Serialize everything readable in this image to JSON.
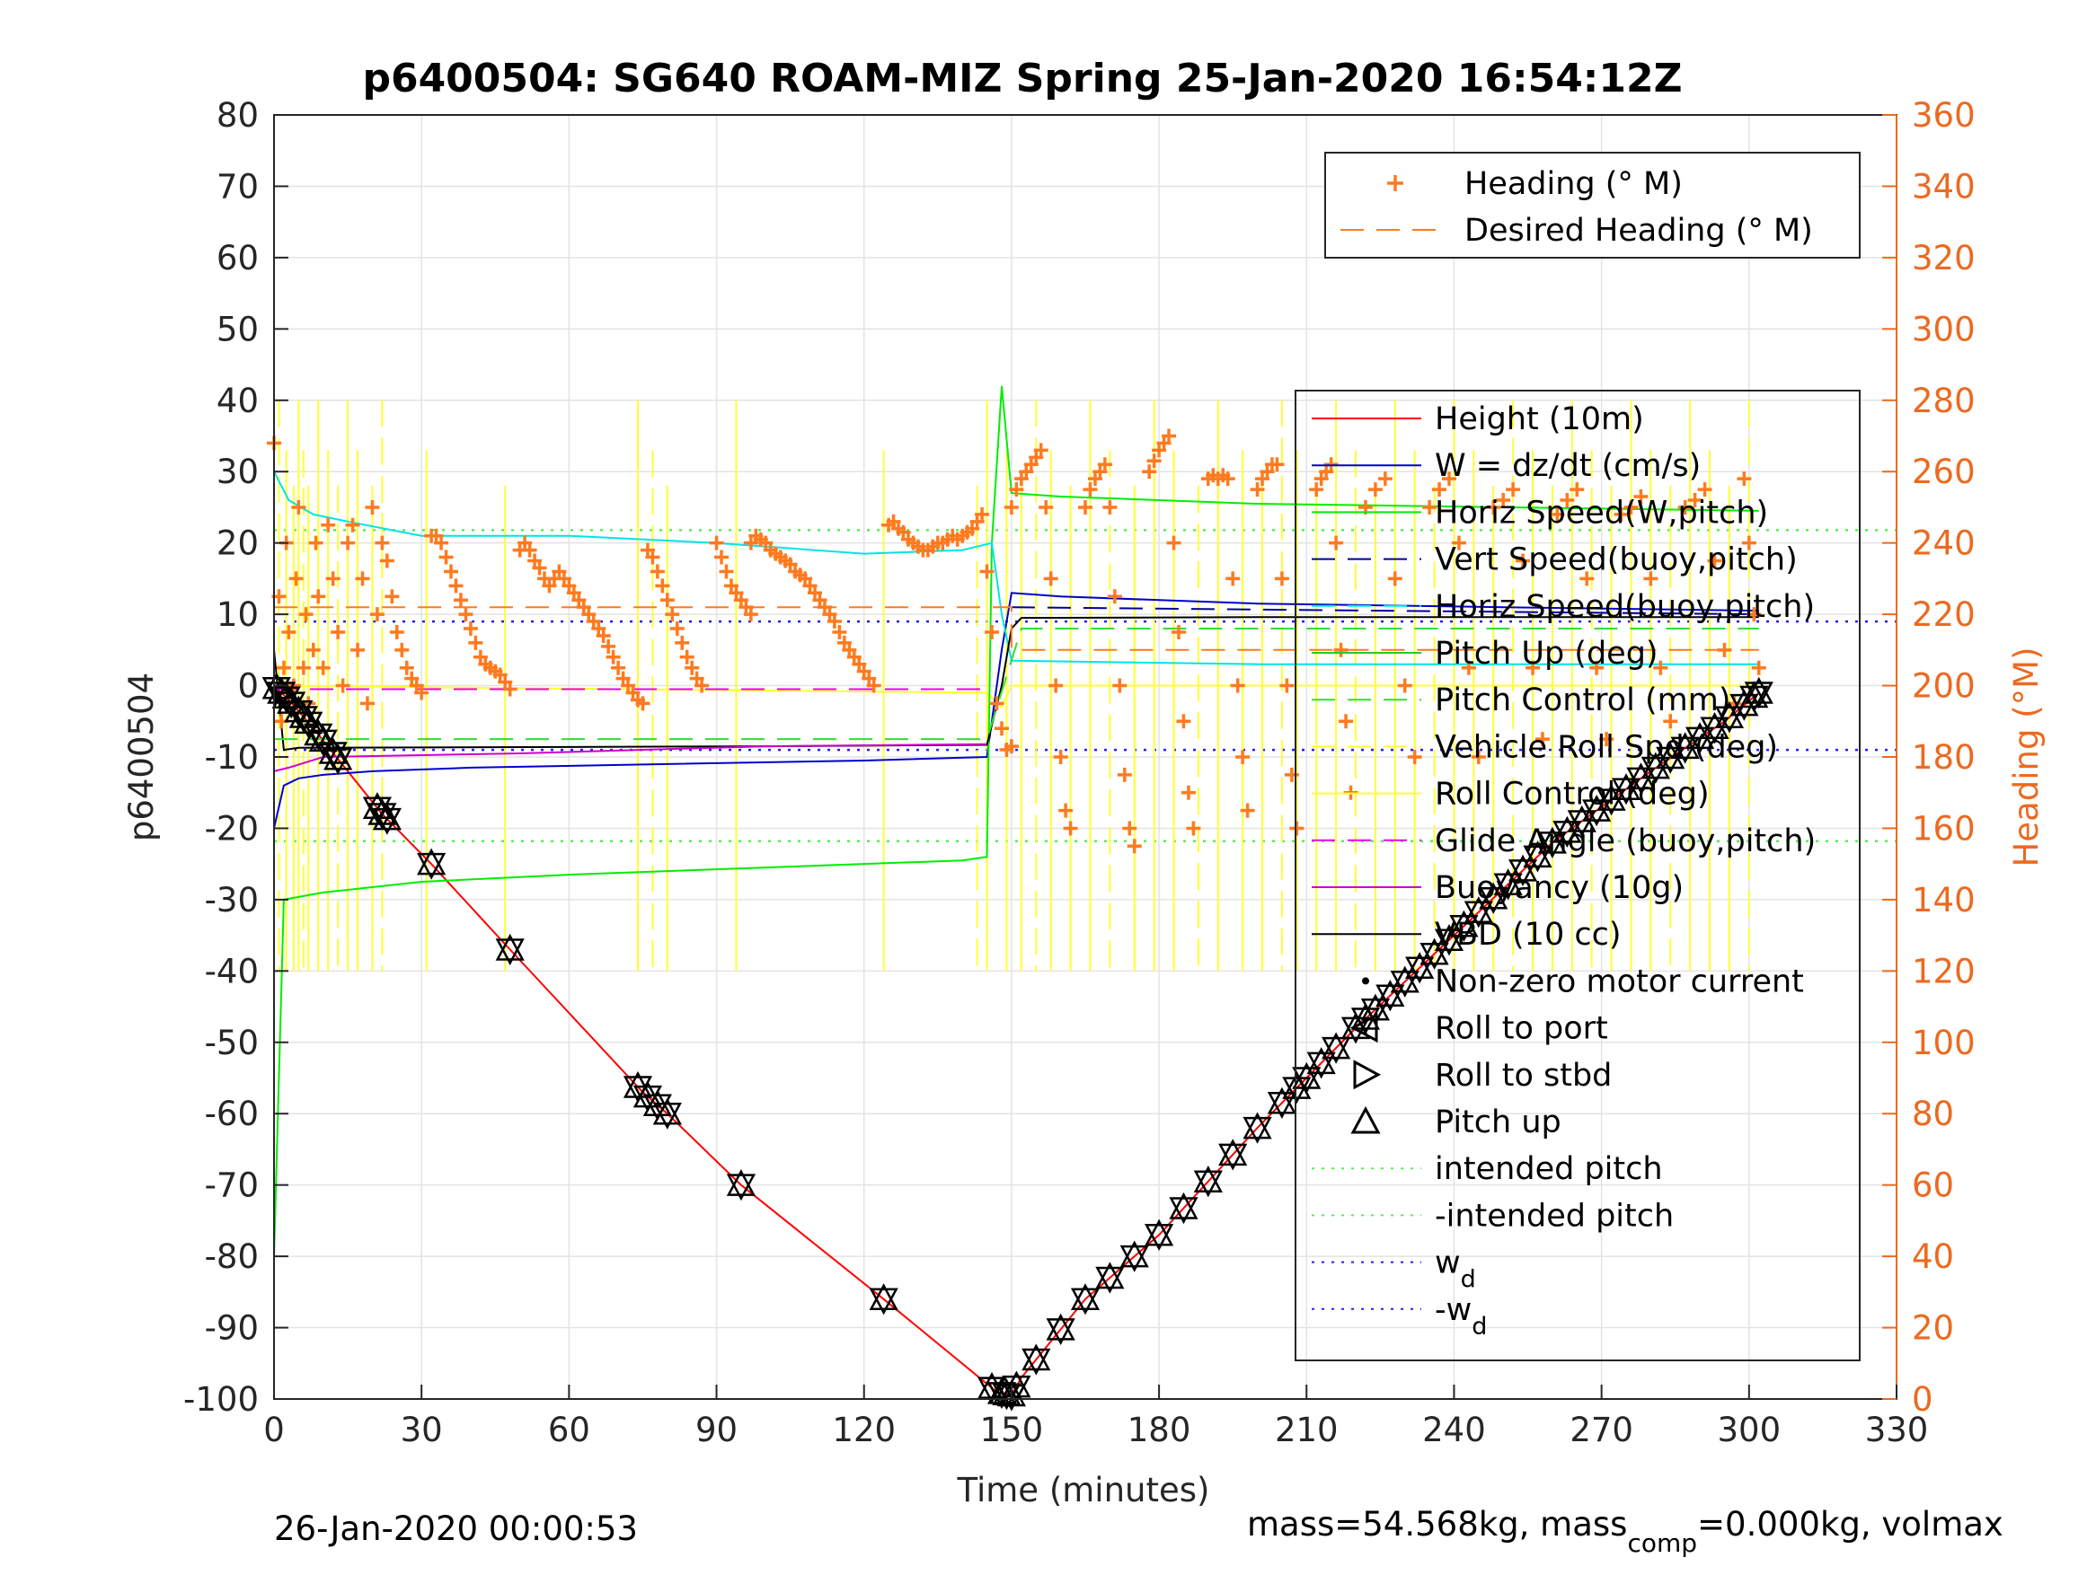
{
  "title": "p6400504: SG640 ROAM-MIZ Spring 25-Jan-2020 16:54:12Z",
  "footer_left": "26-Jan-2020 00:00:53",
  "footer_right": {
    "text_1": "mass=54.568kg, mass",
    "sub_1": "comp",
    "text_2": "=0.000kg, volmax"
  },
  "colors": {
    "height": "#ff0000",
    "w": "#0000cc",
    "horiz_speed": "#00ee00",
    "vert_speed": "#000099",
    "horiz_speed_buoy": "#00e5e5",
    "pitch_up": "#22cc22",
    "pitch_control": "#33dd33",
    "roll": "#ffff33",
    "glide_angle": "#ee00ee",
    "buoyancy": "#cc00cc",
    "vbd": "#000000",
    "heading": "#ff7a1f",
    "desired_heading": "#ff7a1f",
    "intended_pitch": "#55ee55",
    "wd": "#2222ee",
    "right_axis": "#ec6a20"
  },
  "chart_data": {
    "type": "line",
    "title": "p6400504: SG640 ROAM-MIZ Spring 25-Jan-2020 16:54:12Z",
    "xlabel": "Time (minutes)",
    "ylabel": "p6400504",
    "ylabel_right": "Heading (°M)",
    "xlim": [
      0,
      330
    ],
    "ylim": [
      -100,
      80
    ],
    "ylim_right": [
      0,
      360
    ],
    "xticks": [
      0,
      30,
      60,
      90,
      120,
      150,
      180,
      210,
      240,
      270,
      300,
      330
    ],
    "yticks": [
      -100,
      -90,
      -80,
      -70,
      -60,
      -50,
      -40,
      -30,
      -20,
      -10,
      0,
      10,
      20,
      30,
      40,
      50,
      60,
      70,
      80
    ],
    "yticks_right": [
      0,
      20,
      40,
      60,
      80,
      100,
      120,
      140,
      160,
      180,
      200,
      220,
      240,
      260,
      280,
      300,
      320,
      340,
      360
    ],
    "grid": true,
    "legend_top": {
      "placement": "top-right",
      "entries": [
        "Heading (° M)",
        "Desired Heading (° M)"
      ]
    },
    "legend_main": {
      "placement": "right",
      "entries": [
        "Height (10m)",
        "W = dz/dt (cm/s)",
        "Horiz Speed(W,pitch)",
        "Vert Speed(buoy,pitch)",
        "Horiz Speed(buoy,pitch)",
        "Pitch Up (deg)",
        "Pitch Control (mm)",
        "Vehicle Roll Spd (deg)",
        "Roll Control (deg)",
        "Glide Angle (buoy,pitch)",
        "Buoyancy (10g)",
        "VBD (10 cc)",
        "Non-zero motor current",
        "Roll to port",
        "Roll to stbd",
        "Pitch up",
        "intended pitch",
        "-intended pitch",
        "w_d",
        "-w_d"
      ],
      "wd_label": "w",
      "wd_sub": "d",
      "neg_wd_label": "-w",
      "neg_wd_sub": "d"
    },
    "series": [
      {
        "key": "height",
        "x": [
          0,
          3,
          8,
          15,
          22,
          32,
          48,
          75,
          80,
          95,
          124,
          147,
          150,
          152,
          165,
          180,
          200,
          220,
          240,
          260,
          280,
          295,
          302
        ],
        "y": [
          0,
          -2,
          -6,
          -12,
          -18,
          -25,
          -37,
          -57,
          -60,
          -70,
          -86,
          -99,
          -99.5,
          -97,
          -86,
          -77,
          -62,
          -48,
          -35,
          -22,
          -12,
          -5,
          -1
        ]
      },
      {
        "key": "w",
        "x": [
          0,
          2,
          5,
          10,
          20,
          40,
          80,
          120,
          145,
          148,
          150,
          160,
          200,
          250,
          302
        ],
        "y": [
          -20,
          -14,
          -13,
          -12.5,
          -12,
          -11.5,
          -11,
          -10.5,
          -10,
          5,
          13,
          12.5,
          11.5,
          11,
          10.5
        ]
      },
      {
        "key": "horiz_speed",
        "x": [
          0,
          2,
          10,
          30,
          60,
          100,
          140,
          145,
          146,
          148,
          150,
          160,
          200,
          250,
          302
        ],
        "y": [
          -80,
          -30,
          -29,
          -27.5,
          -26.5,
          -25.5,
          -24.5,
          -24,
          20,
          42,
          27,
          26.5,
          25.5,
          25,
          24.5
        ]
      },
      {
        "key": "horiz_speed_buoy",
        "x": [
          0,
          3,
          8,
          15,
          30,
          60,
          90,
          120,
          140,
          146,
          148,
          150,
          200,
          302
        ],
        "y": [
          30,
          26,
          24,
          23,
          21,
          21,
          20,
          18.5,
          19,
          20,
          10,
          3.5,
          3,
          3
        ]
      },
      {
        "key": "vbd",
        "x": [
          0,
          2,
          5,
          60,
          100,
          145,
          148,
          150,
          152,
          200,
          302
        ],
        "y": [
          5,
          -9,
          -8.7,
          -8.6,
          -8.5,
          -8.3,
          0,
          8,
          9.5,
          9.6,
          9.6
        ]
      },
      {
        "key": "buoyancy",
        "x": [
          0,
          3,
          10,
          50,
          100,
          145
        ],
        "y": [
          -12,
          -11.5,
          -10,
          -9.5,
          -8.5,
          -8.2
        ]
      },
      {
        "key": "glide_angle",
        "x": [
          0,
          145
        ],
        "y": [
          -0.5,
          -0.5
        ]
      },
      {
        "key": "vert_speed",
        "x": [
          150,
          302
        ],
        "y": [
          11,
          10
        ]
      },
      {
        "key": "pitch_control",
        "x": [
          0,
          145,
          152,
          302
        ],
        "y": [
          -7.5,
          -7.5,
          8,
          8
        ]
      },
      {
        "key": "intended_pitch",
        "style": "dotted",
        "x": [
          0,
          330
        ],
        "y": [
          21.8,
          21.8
        ]
      },
      {
        "key": "neg_intended_pitch",
        "style": "dotted",
        "x": [
          0,
          330
        ],
        "y": [
          -21.8,
          -21.8
        ]
      },
      {
        "key": "wd",
        "style": "dotted",
        "x": [
          0,
          330
        ],
        "y": [
          9,
          9
        ]
      },
      {
        "key": "neg_wd",
        "style": "dotted",
        "x": [
          0,
          330
        ],
        "y": [
          -9,
          -9
        ]
      },
      {
        "key": "desired_heading",
        "style": "dashed",
        "axis": "right",
        "x": [
          0,
          150,
          150,
          302
        ],
        "y": [
          222,
          222,
          210,
          210
        ]
      }
    ],
    "roll_spikes_x": [
      1,
      2.5,
      4,
      5,
      6,
      7,
      9,
      11,
      13,
      15,
      17,
      20,
      22,
      31,
      47,
      74,
      77,
      80,
      94,
      124,
      143,
      145,
      149,
      152,
      155,
      158,
      162,
      166,
      170,
      175,
      179,
      183,
      188,
      192,
      197,
      201,
      205,
      208,
      212,
      216,
      220,
      224,
      228,
      232,
      236,
      240,
      244,
      248,
      252,
      256,
      260,
      264,
      268,
      272,
      276,
      280,
      284,
      288,
      292,
      296,
      300
    ],
    "heading_points": [
      [
        0,
        268
      ],
      [
        1,
        225
      ],
      [
        1.5,
        190
      ],
      [
        2,
        205
      ],
      [
        2.5,
        240
      ],
      [
        3,
        215
      ],
      [
        4,
        200
      ],
      [
        4.5,
        230
      ],
      [
        5,
        250
      ],
      [
        6,
        205
      ],
      [
        6.5,
        220
      ],
      [
        7,
        195
      ],
      [
        8,
        210
      ],
      [
        8.5,
        240
      ],
      [
        9,
        225
      ],
      [
        10,
        205
      ],
      [
        11,
        245
      ],
      [
        12,
        230
      ],
      [
        13,
        215
      ],
      [
        14,
        200
      ],
      [
        15,
        240
      ],
      [
        16,
        245
      ],
      [
        17,
        210
      ],
      [
        18,
        230
      ],
      [
        19,
        195
      ],
      [
        20,
        250
      ],
      [
        21,
        220
      ],
      [
        22,
        240
      ],
      [
        23,
        235
      ],
      [
        24,
        225
      ],
      [
        25,
        215
      ],
      [
        26,
        210
      ],
      [
        27,
        205
      ],
      [
        28,
        202
      ],
      [
        29,
        200
      ],
      [
        30,
        198
      ],
      [
        32,
        242
      ],
      [
        33,
        242
      ],
      [
        34,
        240
      ],
      [
        35,
        236
      ],
      [
        36,
        232
      ],
      [
        37,
        228
      ],
      [
        38,
        224
      ],
      [
        39,
        220
      ],
      [
        40,
        216
      ],
      [
        41,
        212
      ],
      [
        42,
        208
      ],
      [
        43,
        206
      ],
      [
        44,
        205
      ],
      [
        45,
        204
      ],
      [
        46,
        203
      ],
      [
        47,
        201
      ],
      [
        48,
        199
      ],
      [
        50,
        238
      ],
      [
        51,
        240
      ],
      [
        52,
        238
      ],
      [
        53,
        235
      ],
      [
        54,
        233
      ],
      [
        55,
        230
      ],
      [
        56,
        228
      ],
      [
        57,
        230
      ],
      [
        58,
        232
      ],
      [
        59,
        230
      ],
      [
        60,
        228
      ],
      [
        61,
        226
      ],
      [
        62,
        224
      ],
      [
        63,
        222
      ],
      [
        64,
        220
      ],
      [
        65,
        218
      ],
      [
        66,
        216
      ],
      [
        67,
        214
      ],
      [
        68,
        211
      ],
      [
        69,
        208
      ],
      [
        70,
        205
      ],
      [
        71,
        202
      ],
      [
        72,
        200
      ],
      [
        73,
        198
      ],
      [
        74,
        196
      ],
      [
        75,
        195
      ],
      [
        76,
        238
      ],
      [
        77,
        236
      ],
      [
        78,
        232
      ],
      [
        79,
        228
      ],
      [
        80,
        224
      ],
      [
        81,
        220
      ],
      [
        82,
        216
      ],
      [
        83,
        212
      ],
      [
        84,
        208
      ],
      [
        85,
        205
      ],
      [
        86,
        202
      ],
      [
        87,
        200
      ],
      [
        90,
        240
      ],
      [
        91,
        236
      ],
      [
        92,
        232
      ],
      [
        93,
        228
      ],
      [
        94,
        226
      ],
      [
        95,
        224
      ],
      [
        96,
        222
      ],
      [
        97,
        220
      ],
      [
        97,
        240
      ],
      [
        98,
        242
      ],
      [
        99,
        241
      ],
      [
        100,
        240
      ],
      [
        101,
        238
      ],
      [
        102,
        237
      ],
      [
        103,
        236
      ],
      [
        104,
        235
      ],
      [
        105,
        234
      ],
      [
        106,
        232
      ],
      [
        107,
        231
      ],
      [
        108,
        230
      ],
      [
        109,
        228
      ],
      [
        110,
        226
      ],
      [
        111,
        224
      ],
      [
        112,
        222
      ],
      [
        113,
        220
      ],
      [
        114,
        218
      ],
      [
        115,
        215
      ],
      [
        116,
        212
      ],
      [
        117,
        210
      ],
      [
        118,
        208
      ],
      [
        119,
        206
      ],
      [
        120,
        204
      ],
      [
        121,
        202
      ],
      [
        122,
        200
      ],
      [
        125,
        245
      ],
      [
        126,
        246
      ],
      [
        127,
        244
      ],
      [
        128,
        243
      ],
      [
        129,
        241
      ],
      [
        130,
        240
      ],
      [
        131,
        239
      ],
      [
        132,
        238
      ],
      [
        133,
        238
      ],
      [
        134,
        239
      ],
      [
        135,
        240
      ],
      [
        136,
        240
      ],
      [
        137,
        241
      ],
      [
        138,
        242
      ],
      [
        139,
        241
      ],
      [
        140,
        242
      ],
      [
        141,
        243
      ],
      [
        142,
        244
      ],
      [
        143,
        246
      ],
      [
        144,
        248
      ],
      [
        145,
        232
      ],
      [
        146,
        215
      ],
      [
        147,
        195
      ],
      [
        148,
        188
      ],
      [
        149,
        182
      ],
      [
        150,
        183
      ],
      [
        150,
        250
      ],
      [
        151,
        255
      ],
      [
        152,
        258
      ],
      [
        153,
        260
      ],
      [
        154,
        262
      ],
      [
        155,
        264
      ],
      [
        156,
        266
      ],
      [
        157,
        250
      ],
      [
        158,
        230
      ],
      [
        159,
        200
      ],
      [
        160,
        180
      ],
      [
        161,
        165
      ],
      [
        162,
        160
      ],
      [
        165,
        250
      ],
      [
        166,
        255
      ],
      [
        167,
        258
      ],
      [
        168,
        260
      ],
      [
        169,
        262
      ],
      [
        170,
        250
      ],
      [
        171,
        225
      ],
      [
        172,
        200
      ],
      [
        173,
        175
      ],
      [
        174,
        160
      ],
      [
        175,
        155
      ],
      [
        178,
        260
      ],
      [
        179,
        263
      ],
      [
        180,
        266
      ],
      [
        181,
        268
      ],
      [
        182,
        270
      ],
      [
        183,
        240
      ],
      [
        184,
        215
      ],
      [
        185,
        190
      ],
      [
        186,
        170
      ],
      [
        187,
        160
      ],
      [
        190,
        258
      ],
      [
        191,
        259
      ],
      [
        192,
        258
      ],
      [
        193,
        259
      ],
      [
        194,
        258
      ],
      [
        195,
        230
      ],
      [
        196,
        200
      ],
      [
        197,
        180
      ],
      [
        198,
        165
      ],
      [
        200,
        255
      ],
      [
        201,
        258
      ],
      [
        202,
        260
      ],
      [
        203,
        262
      ],
      [
        204,
        262
      ],
      [
        205,
        230
      ],
      [
        206,
        200
      ],
      [
        207,
        175
      ],
      [
        208,
        160
      ],
      [
        212,
        255
      ],
      [
        213,
        258
      ],
      [
        214,
        260
      ],
      [
        215,
        262
      ],
      [
        216,
        240
      ],
      [
        217,
        210
      ],
      [
        218,
        190
      ],
      [
        219,
        170
      ],
      [
        222,
        250
      ],
      [
        224,
        255
      ],
      [
        226,
        258
      ],
      [
        228,
        230
      ],
      [
        230,
        200
      ],
      [
        232,
        180
      ],
      [
        235,
        250
      ],
      [
        237,
        255
      ],
      [
        239,
        258
      ],
      [
        241,
        240
      ],
      [
        243,
        205
      ],
      [
        245,
        180
      ],
      [
        248,
        250
      ],
      [
        250,
        252
      ],
      [
        252,
        255
      ],
      [
        254,
        235
      ],
      [
        256,
        205
      ],
      [
        258,
        185
      ],
      [
        261,
        248
      ],
      [
        263,
        252
      ],
      [
        265,
        255
      ],
      [
        267,
        230
      ],
      [
        269,
        205
      ],
      [
        271,
        185
      ],
      [
        274,
        248
      ],
      [
        276,
        250
      ],
      [
        278,
        253
      ],
      [
        280,
        230
      ],
      [
        282,
        205
      ],
      [
        284,
        190
      ],
      [
        287,
        250
      ],
      [
        289,
        252
      ],
      [
        291,
        255
      ],
      [
        293,
        235
      ],
      [
        295,
        210
      ],
      [
        297,
        195
      ],
      [
        299,
        258
      ],
      [
        300,
        240
      ],
      [
        301,
        220
      ],
      [
        302,
        205
      ]
    ],
    "pitch_up_markers_x": [
      0.5,
      1.5,
      2.5,
      3.5,
      5,
      6,
      7,
      9,
      10,
      12,
      13,
      21,
      22,
      23,
      32,
      48,
      74,
      76,
      78,
      80,
      95,
      124,
      146,
      148,
      149,
      150,
      151,
      155,
      160,
      165,
      170,
      175,
      180,
      185,
      190,
      195,
      200,
      205,
      208,
      210,
      213,
      216,
      220,
      222,
      224,
      227,
      230,
      233,
      236,
      239,
      242,
      245,
      248,
      251,
      254,
      257,
      260,
      263,
      266,
      269,
      272,
      275,
      278,
      281,
      284,
      287,
      290,
      293,
      296,
      299,
      301,
      302
    ]
  }
}
